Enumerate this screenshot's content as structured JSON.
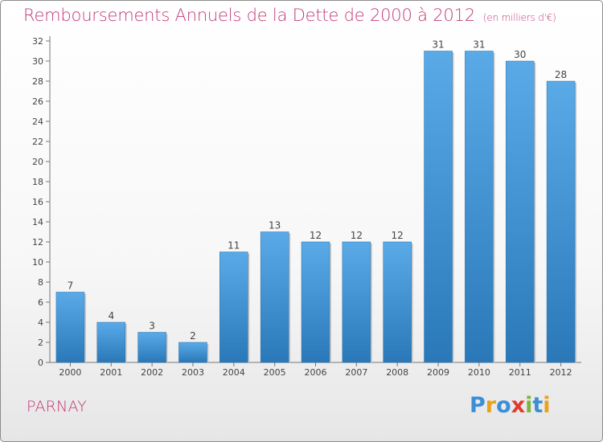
{
  "header": {
    "title": "Remboursements Annuels de la Dette de 2000 à 2012",
    "unit": "(en milliers d'€)"
  },
  "footer": {
    "commune": "PARNAY",
    "brand_letters": [
      "P",
      "r",
      "o",
      "x",
      "i",
      "t",
      "i"
    ],
    "brand_colors": [
      "#3b8fd6",
      "#e8a21c",
      "#3b8fd6",
      "#e23b2e",
      "#7cb342",
      "#3b8fd6",
      "#e8a21c"
    ]
  },
  "colors": {
    "bar_top": "#5aaae8",
    "bar_bottom": "#2a78b8",
    "text": "#444444",
    "accent": "#c33a78"
  },
  "chart_data": {
    "type": "bar",
    "title": "Remboursements Annuels de la Dette de 2000 à 2012",
    "subtitle": "(en milliers d'€)",
    "xlabel": "",
    "ylabel": "",
    "categories": [
      "2000",
      "2001",
      "2002",
      "2003",
      "2004",
      "2005",
      "2006",
      "2007",
      "2008",
      "2009",
      "2010",
      "2011",
      "2012"
    ],
    "values": [
      7,
      4,
      3,
      2,
      11,
      13,
      12,
      12,
      12,
      31,
      31,
      30,
      28
    ],
    "ylim": [
      0,
      32
    ],
    "yticks": [
      0,
      2,
      4,
      6,
      8,
      10,
      12,
      14,
      16,
      18,
      20,
      22,
      24,
      26,
      28,
      30,
      32
    ],
    "grid": false,
    "legend": "none"
  }
}
